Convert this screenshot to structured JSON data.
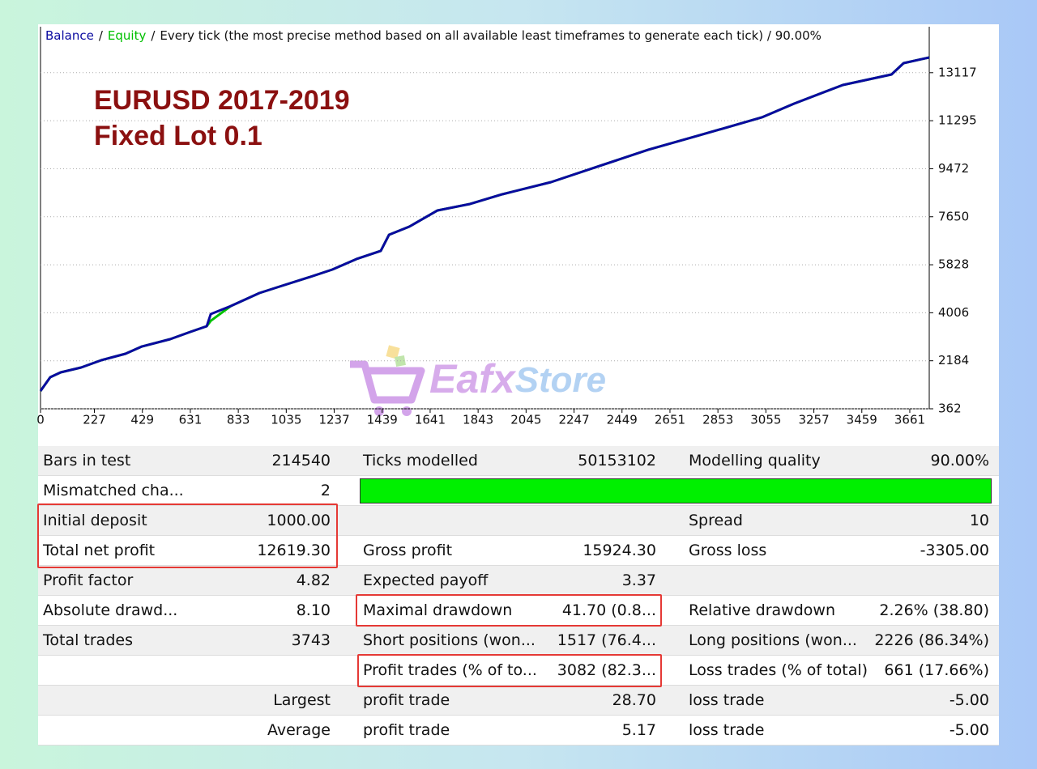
{
  "chart_data": {
    "type": "line",
    "legend_separator": "/",
    "subtitle": "Every tick (the most precise method based on all available least timeframes to generate each tick) / 90.00%",
    "annotations": [
      "EURUSD  2017-2019",
      "Fixed Lot 0.1"
    ],
    "watermark": [
      "Eafx",
      "Store"
    ],
    "x": [
      0,
      41,
      85,
      171,
      256,
      358,
      427,
      546,
      631,
      700,
      717,
      802,
      922,
      1007,
      1126,
      1229,
      1331,
      1433,
      1468,
      1553,
      1672,
      1809,
      1945,
      2150,
      2355,
      2560,
      2765,
      3038,
      3174,
      3379,
      3584,
      3635,
      3743
    ],
    "series": [
      {
        "name": "Equity",
        "color": "#00c000",
        "values": [
          1038,
          1560,
          1744,
          1929,
          2205,
          2451,
          2727,
          3004,
          3280,
          3496,
          3700,
          4264,
          4755,
          5001,
          5339,
          5646,
          6046,
          6353,
          6967,
          7274,
          7889,
          8135,
          8503,
          8964,
          9579,
          10193,
          10715,
          11422,
          11944,
          12651,
          13050,
          13480,
          13695
        ]
      },
      {
        "name": "Balance",
        "color": "#0a0aa0",
        "values": [
          1038,
          1560,
          1744,
          1929,
          2205,
          2451,
          2727,
          3004,
          3280,
          3496,
          3956,
          4264,
          4755,
          5001,
          5339,
          5646,
          6046,
          6353,
          6967,
          7274,
          7889,
          8135,
          8503,
          8964,
          9579,
          10193,
          10715,
          11422,
          11944,
          12651,
          13050,
          13480,
          13695
        ]
      }
    ],
    "xlim": [
      0,
      3743
    ],
    "xticks": [
      0,
      227,
      429,
      631,
      833,
      1035,
      1237,
      1439,
      1641,
      1843,
      2045,
      2247,
      2449,
      2651,
      2853,
      3055,
      3257,
      3459,
      3661
    ],
    "ylim": [
      362,
      14862
    ],
    "yticks": [
      362,
      2184,
      4006,
      5828,
      7650,
      9472,
      11295,
      13117
    ],
    "grid": true
  },
  "table": {
    "rows": [
      [
        "Bars in test",
        "214540",
        "Ticks modelled",
        "50153102",
        "Modelling quality",
        "90.00%"
      ],
      [
        "Mismatched cha...",
        "2",
        null,
        null,
        null,
        null
      ],
      [
        "Initial deposit",
        "1000.00",
        null,
        null,
        "Spread",
        "10"
      ],
      [
        "Total net profit",
        "12619.30",
        "Gross profit",
        "15924.30",
        "Gross loss",
        "-3305.00"
      ],
      [
        "Profit factor",
        "4.82",
        "Expected payoff",
        "3.37",
        null,
        null
      ],
      [
        "Absolute drawd...",
        "8.10",
        "Maximal drawdown",
        "41.70 (0.8...",
        "Relative drawdown",
        "2.26% (38.80)"
      ],
      [
        "Total trades",
        "3743",
        "Short positions (won...",
        "1517 (76.4...",
        "Long positions (won...",
        "2226 (86.34%)"
      ],
      [
        null,
        null,
        "Profit trades (% of to...",
        "3082 (82.3...",
        "Loss trades (% of total)",
        "661 (17.66%)"
      ],
      [
        null,
        "Largest",
        "profit trade",
        "28.70",
        "loss trade",
        "-5.00"
      ],
      [
        null,
        "Average",
        "profit trade",
        "5.17",
        "loss trade",
        "-5.00"
      ]
    ]
  }
}
